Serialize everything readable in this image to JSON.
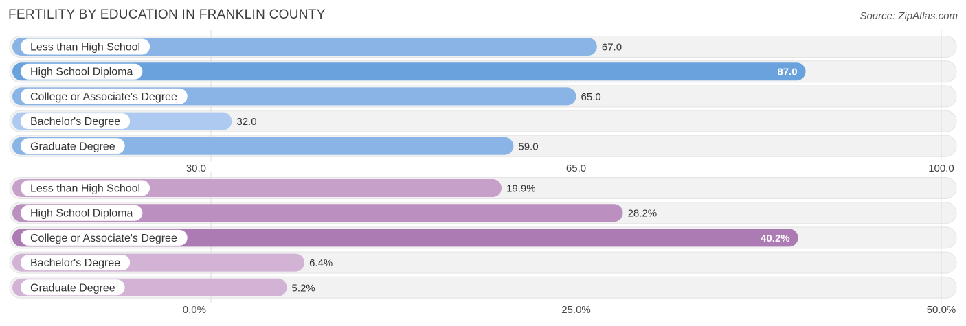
{
  "title": "FERTILITY BY EDUCATION IN FRANKLIN COUNTY",
  "source": "Source: ZipAtlas.com",
  "chart_data": [
    {
      "type": "bar",
      "orientation": "horizontal",
      "categories": [
        "Less than High School",
        "High School Diploma",
        "College or Associate's Degree",
        "Bachelor's Degree",
        "Graduate Degree"
      ],
      "values": [
        67.0,
        87.0,
        65.0,
        32.0,
        59.0
      ],
      "value_labels": [
        "67.0",
        "87.0",
        "65.0",
        "32.0",
        "59.0"
      ],
      "xlim": [
        30.0,
        100.0
      ],
      "ticks": [
        30.0,
        65.0,
        100.0
      ],
      "tick_labels": [
        "30.0",
        "65.0",
        "100.0"
      ],
      "colors": [
        "#8ab4e6",
        "#6aa2de",
        "#8ab4e6",
        "#aecaf0",
        "#8ab4e6"
      ],
      "label_color": "#4a90d9",
      "grid": true
    },
    {
      "type": "bar",
      "orientation": "horizontal",
      "categories": [
        "Less than High School",
        "High School Diploma",
        "College or Associate's Degree",
        "Bachelor's Degree",
        "Graduate Degree"
      ],
      "values": [
        19.9,
        28.2,
        40.2,
        6.4,
        5.2
      ],
      "value_labels": [
        "19.9%",
        "28.2%",
        "40.2%",
        "6.4%",
        "5.2%"
      ],
      "xlim": [
        0.0,
        50.0
      ],
      "ticks": [
        0.0,
        25.0,
        50.0
      ],
      "tick_labels": [
        "0.0%",
        "25.0%",
        "50.0%"
      ],
      "colors": [
        "#c7a0c9",
        "#bb8fbf",
        "#ad7bb3",
        "#d3b3d5",
        "#d3b3d5"
      ],
      "label_color": "#a070a8",
      "grid": true
    }
  ]
}
